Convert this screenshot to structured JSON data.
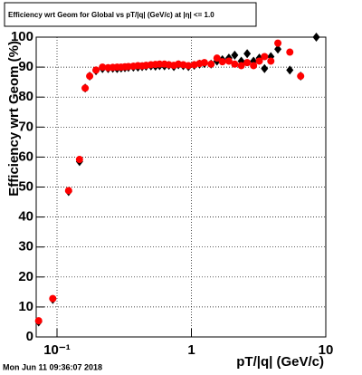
{
  "chart_data": {
    "type": "scatter",
    "title": "Efficiency wrt Geom for Global vs pT/|q| (GeV/c) at |η| <= 1.0",
    "x_label": "pT/|q| (GeV/c)",
    "y_label": "Efficiency wrt Geom (%)",
    "timestamp": "Mon Jun 11 09:36:07 2018",
    "log_x": true,
    "grid": true,
    "xlim": [
      0.07,
      10
    ],
    "xticks": [
      {
        "value": 0.1,
        "label": "10⁻¹"
      },
      1,
      10
    ],
    "ylim": [
      0,
      100
    ],
    "yticks": [
      0,
      10,
      20,
      30,
      40,
      50,
      60,
      70,
      80,
      90,
      100
    ],
    "x": [
      0.073,
      0.093,
      0.122,
      0.147,
      0.162,
      0.175,
      0.195,
      0.218,
      0.24,
      0.26,
      0.28,
      0.3,
      0.32,
      0.34,
      0.37,
      0.4,
      0.43,
      0.46,
      0.5,
      0.54,
      0.58,
      0.63,
      0.68,
      0.74,
      0.8,
      0.87,
      0.95,
      1.05,
      1.15,
      1.25,
      1.4,
      1.55,
      1.7,
      1.9,
      2.1,
      2.35,
      2.6,
      2.9,
      3.2,
      3.5,
      3.9,
      4.4,
      5.4,
      6.5,
      8.5
    ],
    "series": [
      {
        "name": "black",
        "color": "#000000",
        "marker": "diamond",
        "values": [
          5,
          12.5,
          48.5,
          58.5,
          83,
          87,
          88.8,
          89.5,
          89.5,
          89.6,
          89.5,
          89.7,
          89.8,
          89.9,
          90,
          90,
          90.2,
          90.3,
          90.4,
          90.3,
          90.5,
          90.4,
          90.6,
          90.2,
          90.8,
          90.5,
          90.2,
          90.6,
          91,
          91.2,
          91,
          92,
          92.5,
          93,
          94,
          92,
          94.5,
          92,
          93,
          89.5,
          93.5,
          96,
          89,
          87,
          100
        ]
      },
      {
        "name": "red",
        "color": "#ff0000",
        "marker": "circle",
        "values": [
          5.4,
          12.8,
          48.8,
          59.2,
          83,
          87,
          89,
          90,
          89.8,
          89.9,
          90,
          90,
          90.1,
          90.2,
          90.3,
          90.5,
          90.4,
          90.6,
          90.8,
          90.9,
          91,
          91,
          90.8,
          90.6,
          91,
          90.8,
          90.5,
          90.8,
          91.2,
          91.5,
          91,
          93,
          91.8,
          92,
          91,
          90.5,
          91.5,
          90.5,
          92,
          93.5,
          92,
          98,
          95,
          87,
          null
        ]
      }
    ]
  }
}
